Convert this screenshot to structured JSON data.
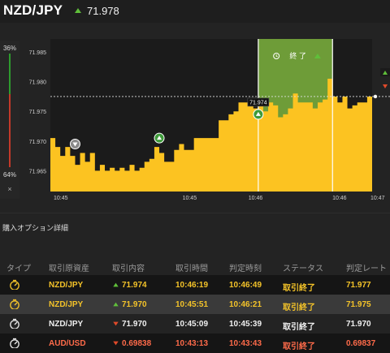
{
  "header": {
    "pair": "NZD/JPY",
    "price": "71.978"
  },
  "gauge": {
    "up_pct_label": "36%",
    "down_pct_label": "64%",
    "up_fraction": 0.36,
    "close_label": "×"
  },
  "chart": {
    "y_ticks": [
      "71.985",
      "71.980",
      "71.975",
      "71.970",
      "71.965"
    ],
    "y_tick_values": [
      71.985,
      71.98,
      71.975,
      71.97,
      71.965
    ],
    "x_ticks": [
      "10:45",
      "10:45",
      "10:46",
      "10:46",
      "10:47"
    ],
    "price_marker": "71.974",
    "expiry_label": "終 了",
    "colors": {
      "area": "#fcc321",
      "green_zone": "#6e9c38",
      "background": "#1b1b1b"
    }
  },
  "chart_data": {
    "type": "area",
    "xlabel": "",
    "ylabel": "",
    "ylim": [
      71.9615,
      71.9872
    ],
    "series": [
      {
        "values": [
          71.9705,
          71.969,
          71.9675,
          71.969,
          71.9675,
          71.966,
          71.968,
          71.9665,
          71.968,
          71.965,
          71.966,
          71.965,
          71.9655,
          71.965,
          71.9655,
          71.965,
          71.966,
          71.965,
          71.9655,
          71.9665,
          71.967,
          71.969,
          71.968,
          71.9665,
          71.9665,
          71.9685,
          71.9695,
          71.9685,
          71.9685,
          71.9705,
          71.9705,
          71.9705,
          71.9705,
          71.9705,
          71.9735,
          71.9735,
          71.9745,
          71.975,
          71.9765,
          71.9765,
          71.9765,
          71.9755,
          71.9765,
          71.975,
          71.9765,
          71.976,
          71.974,
          71.9745,
          71.9755,
          71.978,
          71.9765,
          71.9765,
          71.9765,
          71.9755,
          71.9765,
          71.977,
          71.9805,
          71.9775,
          71.9765,
          71.9775,
          71.9755,
          71.976,
          71.9765,
          71.9765,
          71.9775,
          71.9775
        ]
      }
    ],
    "purchases": [
      {
        "price": 71.9695,
        "direction": "down"
      },
      {
        "price": 71.9705,
        "direction": "up"
      },
      {
        "price": 71.9745,
        "direction": "up"
      }
    ],
    "current_price": 71.9775
  },
  "section": {
    "title": "購入オプション詳細"
  },
  "table": {
    "headers": [
      "タイプ",
      "取引原資産",
      "取引内容",
      "取引時間",
      "判定時刻",
      "ステータス",
      "判定レート"
    ],
    "rows": [
      {
        "asset": "NZD/JPY",
        "direction": "up",
        "rate": "71.974",
        "time": "10:46:19",
        "judge": "10:46:49",
        "status": "取引終了",
        "final": "71.977"
      },
      {
        "asset": "NZD/JPY",
        "direction": "up",
        "rate": "71.970",
        "time": "10:45:51",
        "judge": "10:46:21",
        "status": "取引終了",
        "final": "71.975"
      },
      {
        "asset": "NZD/JPY",
        "direction": "down",
        "rate": "71.970",
        "time": "10:45:09",
        "judge": "10:45:39",
        "status": "取引終了",
        "final": "71.970"
      },
      {
        "asset": "AUD/USD",
        "direction": "down",
        "rate": "0.69838",
        "time": "10:43:13",
        "judge": "10:43:43",
        "status": "取引終了",
        "final": "0.69837"
      }
    ]
  }
}
